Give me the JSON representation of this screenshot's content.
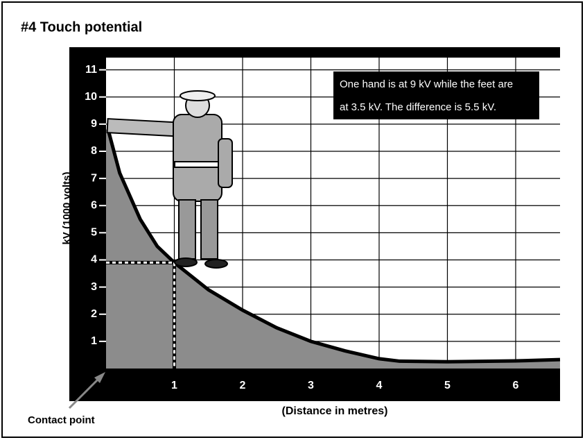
{
  "chart_data": {
    "type": "area",
    "title": "#4 Touch potential",
    "x_label": "(Distance in metres)",
    "y_label": "kV (1000 volts)",
    "annotation": [
      "One hand is at 9 kV while the feet are",
      "at 3.5 kV. The difference is 5.5 kV."
    ],
    "contact_label": "Contact point",
    "x": [
      0.03,
      0.2,
      0.5,
      0.75,
      1,
      1.5,
      2,
      2.5,
      3,
      3.5,
      4,
      4.3,
      5,
      6,
      6.65
    ],
    "values": [
      8.8,
      7.2,
      5.5,
      4.5,
      3.9,
      2.9,
      2.15,
      1.5,
      1.0,
      0.65,
      0.36,
      0.27,
      0.25,
      0.28,
      0.33
    ],
    "color": "#8c8c8c",
    "line_color": "#000000",
    "xlim": [
      0,
      6.65
    ],
    "ylim": [
      0,
      11.45
    ],
    "xticks": [
      1,
      2,
      3,
      4,
      5,
      6
    ],
    "yticks": [
      1,
      2,
      3,
      4,
      5,
      6,
      7,
      8,
      9,
      10,
      11
    ],
    "grid": true
  }
}
